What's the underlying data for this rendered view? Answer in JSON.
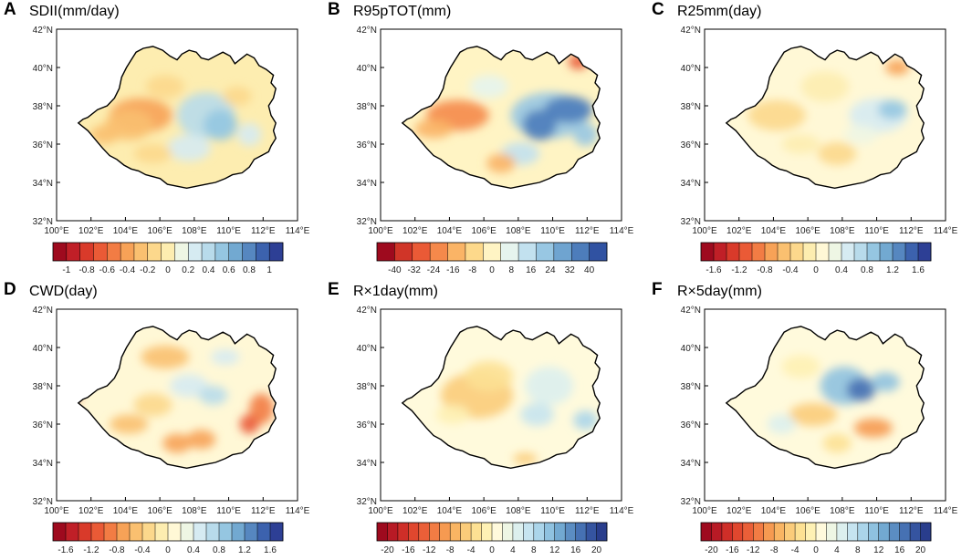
{
  "axes": {
    "lat_labels": [
      "42°N",
      "40°N",
      "38°N",
      "36°N",
      "34°N",
      "32°N"
    ],
    "lon_labels": [
      "100°E",
      "102°E",
      "104°E",
      "106°E",
      "108°E",
      "110°E",
      "112°E",
      "114°E"
    ]
  },
  "panels": [
    {
      "letter": "A",
      "title": "SDII(mm/day)",
      "pattern": "mixed_west_warm",
      "colorbar": {
        "colors": [
          "#9e0a1e",
          "#c01f27",
          "#d93a2a",
          "#ea5a36",
          "#f27c44",
          "#f7a257",
          "#fac070",
          "#fcd88c",
          "#fdedb0",
          "#eef6e4",
          "#d6ebf2",
          "#b8dbeb",
          "#95c6e1",
          "#72a9d1",
          "#5687c0",
          "#3c62ae",
          "#2d3f95"
        ],
        "ticks": [
          "-1",
          "-0.8",
          "-0.6",
          "-0.4",
          "-0.2",
          "0",
          "0.2",
          "0.4",
          "0.6",
          "0.8",
          "1"
        ]
      }
    },
    {
      "letter": "B",
      "title": "R95pTOT(mm)",
      "pattern": "strong_east_cool",
      "colorbar": {
        "colors": [
          "#9e0a1e",
          "#d03528",
          "#ea5a36",
          "#f5894b",
          "#fab466",
          "#fdd98b",
          "#fff4c4",
          "#e6f4ee",
          "#c2e1ef",
          "#98c7e3",
          "#6fa4d0",
          "#4d7dbb",
          "#3052a2"
        ],
        "ticks": [
          "-40",
          "-32",
          "-24",
          "-16",
          "-8",
          "0",
          "8",
          "16",
          "24",
          "32",
          "40"
        ]
      }
    },
    {
      "letter": "C",
      "title": "R25mm(day)",
      "pattern": "mild_mixed",
      "colorbar": {
        "colors": [
          "#9e0a1e",
          "#c01f27",
          "#d93a2a",
          "#ea5a36",
          "#f27c44",
          "#f7a257",
          "#fac070",
          "#fcd88c",
          "#fdedb0",
          "#fff8d6",
          "#eef6e4",
          "#d6ebf2",
          "#b8dbeb",
          "#95c6e1",
          "#72a9d1",
          "#5687c0",
          "#3c62ae",
          "#2d3f95"
        ],
        "ticks": [
          "-1.6",
          "-1.2",
          "-0.8",
          "-0.4",
          "0",
          "0.4",
          "0.8",
          "1.2",
          "1.6"
        ]
      }
    },
    {
      "letter": "D",
      "title": "CWD(day)",
      "pattern": "warm_patchy",
      "colorbar": {
        "colors": [
          "#9e0a1e",
          "#c01f27",
          "#d93a2a",
          "#ea5a36",
          "#f27c44",
          "#f7a257",
          "#fac070",
          "#fcd88c",
          "#fdedb0",
          "#fff8d6",
          "#eef6e4",
          "#d6ebf2",
          "#b8dbeb",
          "#95c6e1",
          "#72a9d1",
          "#5687c0",
          "#3c62ae",
          "#2d3f95"
        ],
        "ticks": [
          "-1.6",
          "-1.2",
          "-0.8",
          "-0.4",
          "0",
          "0.4",
          "0.8",
          "1.2",
          "1.6"
        ]
      }
    },
    {
      "letter": "E",
      "title": "R×1day(mm)",
      "pattern": "smooth_west_warm",
      "colorbar": {
        "colors": [
          "#9e0a1e",
          "#b81a25",
          "#cf2e28",
          "#e0472e",
          "#ea5f38",
          "#f27c44",
          "#f69a51",
          "#f9b563",
          "#fbcc7a",
          "#fde193",
          "#fef1b4",
          "#fffadc",
          "#eef6e4",
          "#dcefee",
          "#c6e4f0",
          "#abd5ea",
          "#8fc2e0",
          "#72a9d1",
          "#5b8dc2",
          "#4671b3",
          "#3554a0",
          "#293d8c"
        ],
        "ticks": [
          "-20",
          "-16",
          "-12",
          "-8",
          "-4",
          "0",
          "4",
          "8",
          "12",
          "16",
          "20"
        ]
      }
    },
    {
      "letter": "F",
      "title": "R×5day(mm)",
      "pattern": "blue_center",
      "colorbar": {
        "colors": [
          "#9e0a1e",
          "#b81a25",
          "#cf2e28",
          "#e0472e",
          "#ea5f38",
          "#f27c44",
          "#f69a51",
          "#f9b563",
          "#fbcc7a",
          "#fde193",
          "#fef1b4",
          "#fffadc",
          "#eef6e4",
          "#dcefee",
          "#c6e4f0",
          "#abd5ea",
          "#8fc2e0",
          "#72a9d1",
          "#5b8dc2",
          "#4671b3",
          "#3554a0",
          "#293d8c"
        ],
        "ticks": [
          "-20",
          "-16",
          "-12",
          "-8",
          "-4",
          "0",
          "4",
          "8",
          "12",
          "16",
          "20"
        ]
      }
    }
  ]
}
